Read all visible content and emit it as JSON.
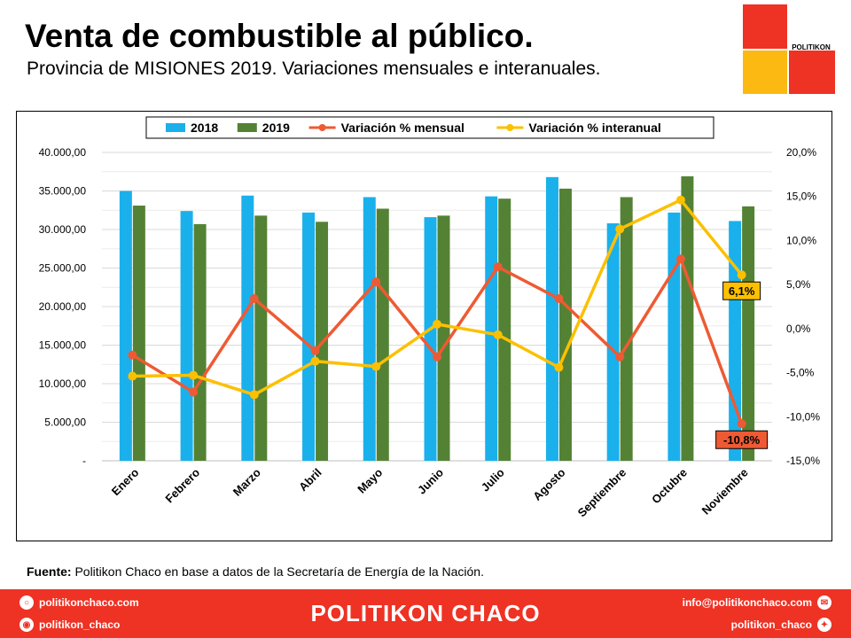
{
  "header": {
    "title": "Venta de combustible al público.",
    "subtitle": "Provincia de MISIONES 2019. Variaciones mensuales e interanuales."
  },
  "logo": {
    "text": "POLITIKON",
    "colors": {
      "red": "#ee3224",
      "yellow": "#fbb912"
    }
  },
  "chart_data": {
    "type": "bar",
    "categories": [
      "Enero",
      "Febrero",
      "Marzo",
      "Abril",
      "Mayo",
      "Junio",
      "Julio",
      "Agosto",
      "Septiembre",
      "Octubre",
      "Noviembre"
    ],
    "series": [
      {
        "name": "2018",
        "kind": "bar",
        "axis": "left",
        "color": "#1ab0ec",
        "values": [
          35000,
          32400,
          34400,
          32200,
          34200,
          31600,
          34300,
          36800,
          30800,
          32200,
          31100
        ]
      },
      {
        "name": "2019",
        "kind": "bar",
        "axis": "left",
        "color": "#548235",
        "values": [
          33100,
          30700,
          31800,
          31000,
          32700,
          31800,
          34000,
          35300,
          34200,
          36900,
          33000
        ]
      },
      {
        "name": "Variación % mensual",
        "kind": "line",
        "axis": "right",
        "color": "#ee5a33",
        "values": [
          -3.0,
          -7.2,
          3.4,
          -2.5,
          5.3,
          -3.2,
          7.0,
          3.4,
          -3.2,
          7.9,
          -10.8
        ]
      },
      {
        "name": "Variación % interanual",
        "kind": "line",
        "axis": "right",
        "color": "#fcc000",
        "values": [
          -5.4,
          -5.3,
          -7.5,
          -3.7,
          -4.3,
          0.5,
          -0.7,
          -4.4,
          11.3,
          14.6,
          6.1
        ]
      }
    ],
    "ylim": [
      0,
      40000
    ],
    "y2lim": [
      -15,
      20
    ],
    "yticks": [
      "-",
      "5.000,00",
      "10.000,00",
      "15.000,00",
      "20.000,00",
      "25.000,00",
      "30.000,00",
      "35.000,00",
      "40.000,00"
    ],
    "y2ticks": [
      "-15,0%",
      "-10,0%",
      "-5,0%",
      "0,0%",
      "5,0%",
      "10,0%",
      "15,0%",
      "20,0%"
    ],
    "grid": true,
    "legend_position": "top",
    "annotations": [
      {
        "series": "Variación % interanual",
        "category": "Noviembre",
        "text": "6,1%",
        "bg": "#fcc000",
        "fg": "#000000"
      },
      {
        "series": "Variación % mensual",
        "category": "Noviembre",
        "text": "-10,8%",
        "bg": "#ee5a33",
        "fg": "#000000"
      }
    ]
  },
  "source": {
    "label": "Fuente:",
    "text": " Politikon Chaco en base a datos de la Secretaría de Energía de la Nación."
  },
  "footer": {
    "web": "politikonchaco.com",
    "instagram": "politikon_chaco",
    "brand": "POLITIKON CHACO",
    "email": "info@politikonchaco.com",
    "twitter": "politikon_chaco",
    "icons": [
      "globe-icon",
      "instagram-icon",
      "mail-icon",
      "twitter-icon"
    ]
  }
}
